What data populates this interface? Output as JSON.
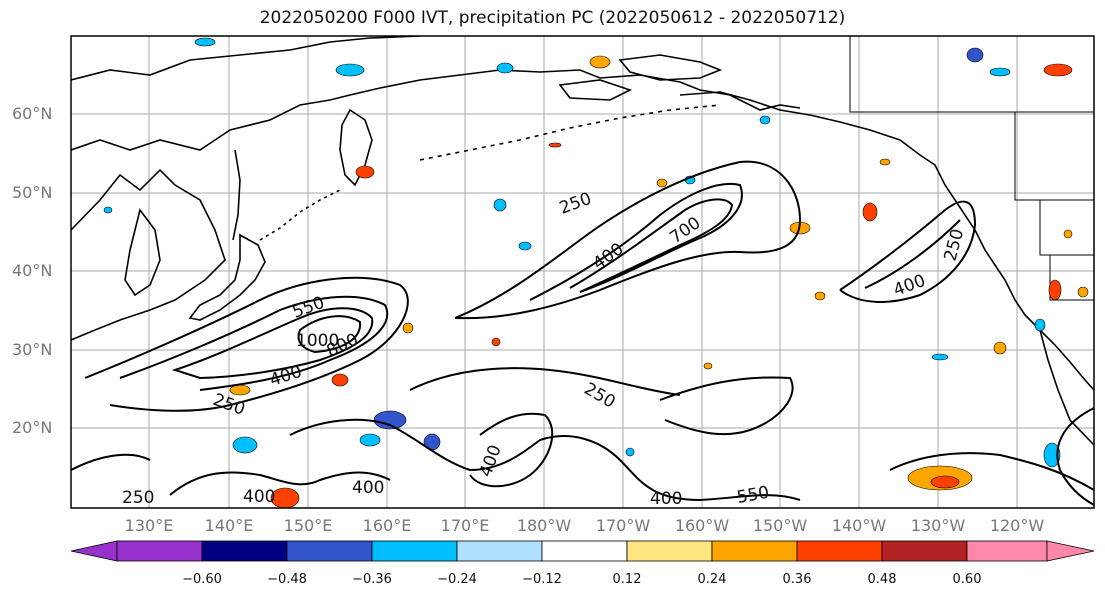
{
  "title": "2022050200 F000 IVT, precipitation PC (2022050612 - 2022050712)",
  "map": {
    "lat_labels": [
      "60°N",
      "50°N",
      "40°N",
      "30°N",
      "20°N"
    ],
    "lon_labels": [
      "130°E",
      "140°E",
      "150°E",
      "160°E",
      "170°E",
      "180°W",
      "170°W",
      "160°W",
      "150°W",
      "140°W",
      "130°W",
      "120°W"
    ],
    "contour_labels": [
      "250",
      "250",
      "250",
      "250",
      "250",
      "400",
      "400",
      "400",
      "400",
      "400",
      "400",
      "400",
      "550",
      "550",
      "700",
      "800",
      "1000"
    ]
  },
  "colorbar": {
    "ticks": [
      "−0.60",
      "−0.48",
      "−0.36",
      "−0.24",
      "−0.12",
      "0.12",
      "0.24",
      "0.36",
      "0.48",
      "0.60"
    ],
    "colors": [
      "#9932CC",
      "#000080",
      "#3355CC",
      "#00BFFF",
      "#B0E0FF",
      "#FFFFFF",
      "#FFE680",
      "#FFA500",
      "#FF4000",
      "#B22222",
      "#FF88AA"
    ]
  }
}
